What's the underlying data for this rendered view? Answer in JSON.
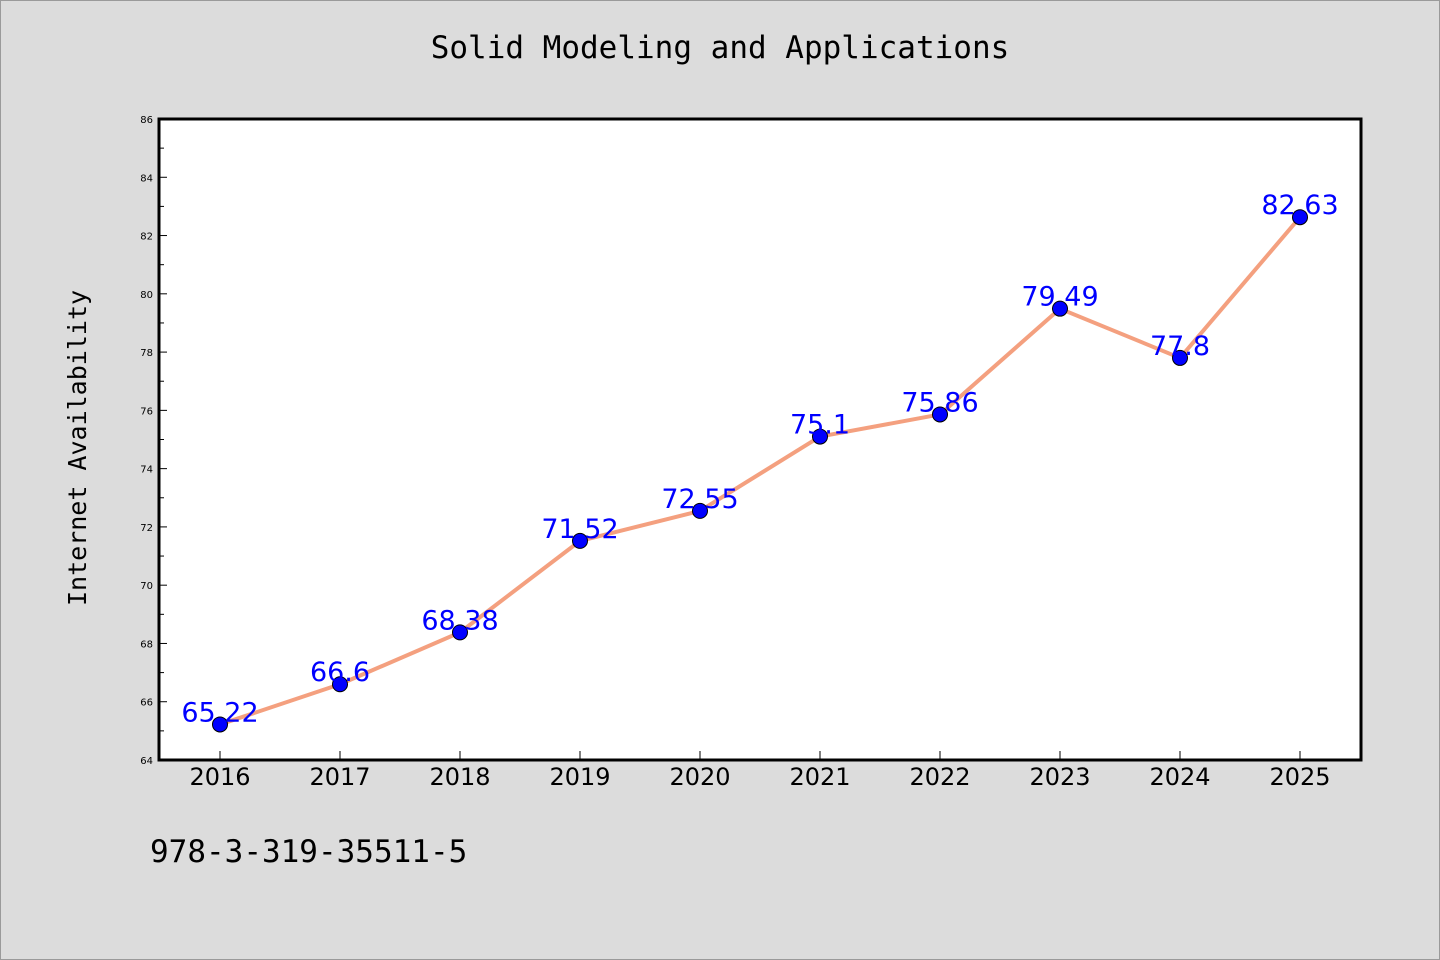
{
  "chart_data": {
    "type": "line",
    "title": "Solid Modeling and Applications",
    "xlabel": "",
    "ylabel": "Internet Availability",
    "categories": [
      "2016",
      "2017",
      "2018",
      "2019",
      "2020",
      "2021",
      "2022",
      "2023",
      "2024",
      "2025"
    ],
    "series": [
      {
        "values": [
          65.22,
          66.6,
          68.38,
          71.52,
          72.55,
          75.1,
          75.86,
          79.49,
          77.8,
          82.63
        ],
        "labels": [
          "65.22",
          "66.6",
          "68.38",
          "71.52",
          "72.55",
          "75.1",
          "75.86",
          "79.49",
          "77.8",
          "82.63"
        ]
      }
    ],
    "ylim": [
      64,
      86
    ],
    "yticks": [
      "64",
      "66",
      "68",
      "70",
      "72",
      "74",
      "76",
      "78",
      "80",
      "82",
      "84",
      "86"
    ],
    "grid": false,
    "legend": "none",
    "colors": {
      "line": "#f4a07f",
      "marker": "#0000ff",
      "label": "#0000ff",
      "background": "#dcdcdc",
      "plot_background": "#ffffff"
    }
  },
  "footer": {
    "text": "978-3-319-35511-5"
  }
}
